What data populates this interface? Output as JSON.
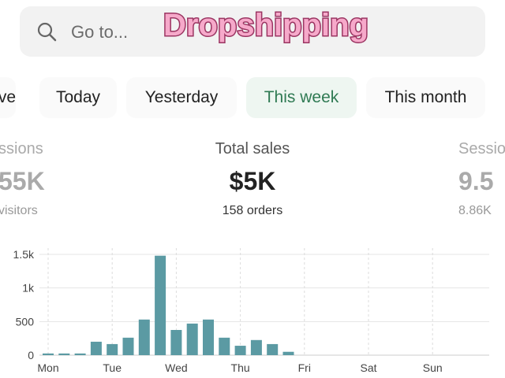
{
  "search": {
    "placeholder": "Go to..."
  },
  "overlay": {
    "text": "Dropshipping"
  },
  "tabs": {
    "items": [
      "ve",
      "Today",
      "Yesterday",
      "This week",
      "This month"
    ],
    "selected": 3
  },
  "stats": [
    {
      "label": "ssions",
      "value": "55K",
      "sub": "visitors"
    },
    {
      "label": "Total sales",
      "value": "$5K",
      "sub": "158 orders"
    },
    {
      "label": "Sessio",
      "value": "9.5",
      "sub": "8.86K"
    }
  ],
  "chart_data": {
    "type": "bar",
    "color": "#5b9aa3",
    "categories": [
      "Mon",
      null,
      null,
      null,
      "Tue",
      null,
      null,
      null,
      "Wed",
      null,
      null,
      null,
      "Thu",
      null,
      null,
      null,
      "Fri",
      null,
      null,
      null,
      "Sat",
      null,
      null,
      null,
      "Sun",
      null,
      null,
      null
    ],
    "values": [
      25,
      25,
      25,
      200,
      165,
      260,
      530,
      1480,
      375,
      470,
      530,
      260,
      140,
      225,
      165,
      50,
      null,
      null,
      null,
      null,
      null,
      null,
      null,
      null,
      null,
      null,
      null,
      null
    ],
    "ylim": [
      0,
      1500
    ],
    "yticks": [
      0,
      500,
      {
        "value": 1000,
        "label": "1k"
      },
      {
        "value": 1500,
        "label": "1.5k"
      }
    ],
    "grid": true
  }
}
